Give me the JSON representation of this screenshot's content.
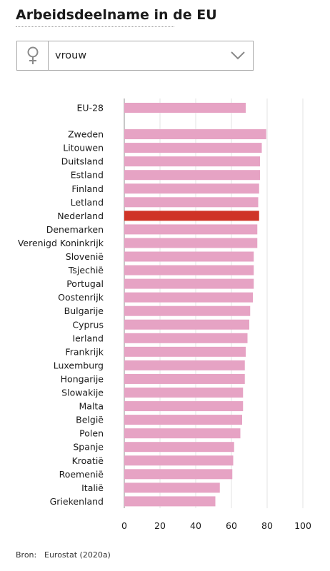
{
  "title": "Arbeidsdeelname in de EU",
  "selector": {
    "icon": "female-symbol-icon",
    "value": "vrouw",
    "chevron": "chevron-down-icon"
  },
  "source": {
    "label": "Bron:",
    "value": "Eurostat (2020a)"
  },
  "colors": {
    "bar": "#e6a3c4",
    "highlight": "#cf3427",
    "grid": "#e3e3e3"
  },
  "chart_data": {
    "type": "bar",
    "orientation": "horizontal",
    "categories": [
      "EU-28",
      "Zweden",
      "Litouwen",
      "Duitsland",
      "Estland",
      "Finland",
      "Letland",
      "Nederland",
      "Denemarken",
      "Verenigd Koninkrijk",
      "Slovenië",
      "Tsjechië",
      "Portugal",
      "Oostenrijk",
      "Bulgarije",
      "Cyprus",
      "Ierland",
      "Frankrijk",
      "Luxemburg",
      "Hongarije",
      "Slowakije",
      "Malta",
      "België",
      "Polen",
      "Spanje",
      "Kroatië",
      "Roemenië",
      "Italië",
      "Griekenland"
    ],
    "values": [
      68,
      79.5,
      77,
      76,
      76,
      75.5,
      75,
      75.5,
      74.5,
      74.5,
      72.5,
      72.5,
      72.5,
      72,
      70.5,
      70,
      69,
      68,
      67.5,
      67.5,
      66.5,
      66.5,
      66,
      65,
      61.5,
      61,
      60.5,
      53.5,
      51
    ],
    "highlight": "Nederland",
    "xlim": [
      0,
      100
    ],
    "xticks": [
      0,
      20,
      40,
      60,
      80,
      100
    ],
    "grid": true
  }
}
